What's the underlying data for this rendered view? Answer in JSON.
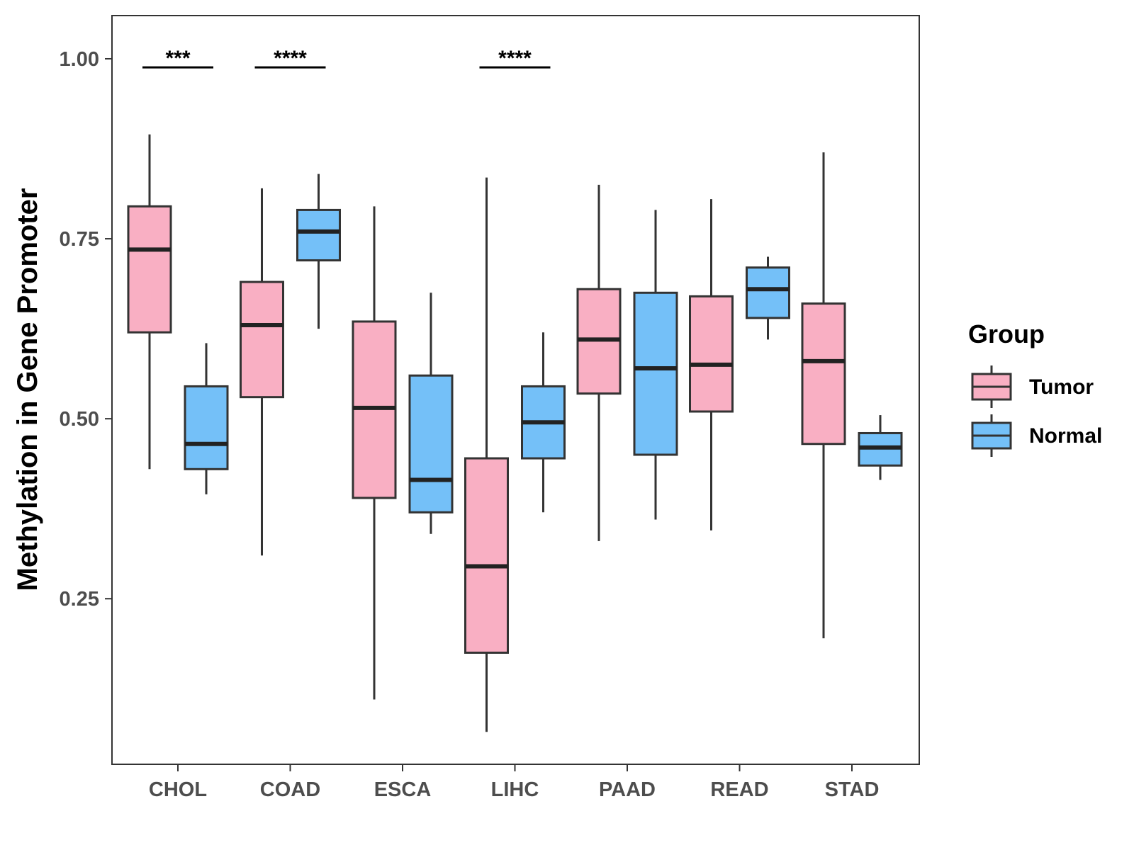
{
  "chart_data": {
    "type": "boxplot",
    "title": "",
    "xlabel": "",
    "ylabel": "Methylation in Gene Promoter",
    "ylim": [
      0.02,
      1.06
    ],
    "yticks": [
      0.25,
      0.5,
      0.75,
      1.0
    ],
    "ytick_labels": [
      "0.25",
      "0.50",
      "0.75",
      "1.00"
    ],
    "categories": [
      "CHOL",
      "COAD",
      "ESCA",
      "LIHC",
      "PAAD",
      "READ",
      "STAD"
    ],
    "legend": {
      "title": "Group",
      "placement": "right",
      "entries": [
        {
          "name": "Tumor",
          "color": "#f9afc3"
        },
        {
          "name": "Normal",
          "color": "#74c0f8"
        }
      ]
    },
    "series": [
      {
        "name": "Tumor",
        "color": "#f9afc3",
        "boxes": [
          {
            "category": "CHOL",
            "min": 0.43,
            "q1": 0.62,
            "median": 0.735,
            "q3": 0.795,
            "max": 0.895
          },
          {
            "category": "COAD",
            "min": 0.31,
            "q1": 0.53,
            "median": 0.63,
            "q3": 0.69,
            "max": 0.82
          },
          {
            "category": "ESCA",
            "min": 0.11,
            "q1": 0.39,
            "median": 0.515,
            "q3": 0.635,
            "max": 0.795
          },
          {
            "category": "LIHC",
            "min": 0.065,
            "q1": 0.175,
            "median": 0.295,
            "q3": 0.445,
            "max": 0.835
          },
          {
            "category": "PAAD",
            "min": 0.33,
            "q1": 0.535,
            "median": 0.61,
            "q3": 0.68,
            "max": 0.825
          },
          {
            "category": "READ",
            "min": 0.345,
            "q1": 0.51,
            "median": 0.575,
            "q3": 0.67,
            "max": 0.805
          },
          {
            "category": "STAD",
            "min": 0.195,
            "q1": 0.465,
            "median": 0.58,
            "q3": 0.66,
            "max": 0.87
          }
        ]
      },
      {
        "name": "Normal",
        "color": "#74c0f8",
        "boxes": [
          {
            "category": "CHOL",
            "min": 0.395,
            "q1": 0.43,
            "median": 0.465,
            "q3": 0.545,
            "max": 0.605
          },
          {
            "category": "COAD",
            "min": 0.625,
            "q1": 0.72,
            "median": 0.76,
            "q3": 0.79,
            "max": 0.84
          },
          {
            "category": "ESCA",
            "min": 0.34,
            "q1": 0.37,
            "median": 0.415,
            "q3": 0.56,
            "max": 0.675
          },
          {
            "category": "LIHC",
            "min": 0.37,
            "q1": 0.445,
            "median": 0.495,
            "q3": 0.545,
            "max": 0.62
          },
          {
            "category": "PAAD",
            "min": 0.36,
            "q1": 0.45,
            "median": 0.57,
            "q3": 0.675,
            "max": 0.79
          },
          {
            "category": "READ",
            "min": 0.61,
            "q1": 0.64,
            "median": 0.68,
            "q3": 0.71,
            "max": 0.725
          },
          {
            "category": "STAD",
            "min": 0.415,
            "q1": 0.435,
            "median": 0.46,
            "q3": 0.48,
            "max": 0.505
          }
        ]
      }
    ],
    "significance": [
      {
        "category": "CHOL",
        "label": "***",
        "y": 0.988
      },
      {
        "category": "COAD",
        "label": "****",
        "y": 0.988
      },
      {
        "category": "LIHC",
        "label": "****",
        "y": 0.988
      }
    ]
  }
}
